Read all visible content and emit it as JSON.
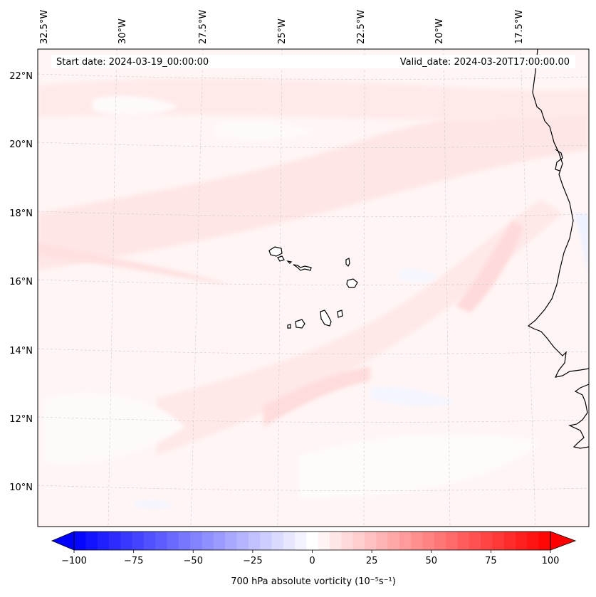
{
  "header": {
    "start_date": "Start date: 2024-03-19_00:00:00",
    "valid_date": "Valid_date: 2024-03-20T17:00:00.00"
  },
  "longitude_labels": [
    "32.5°W",
    "30°W",
    "27.5°W",
    "25°W",
    "22.5°W",
    "20°W",
    "17.5°W"
  ],
  "latitude_labels": [
    "22°N",
    "20°N",
    "18°N",
    "16°N",
    "14°N",
    "12°N",
    "10°N"
  ],
  "colorbar": {
    "label": "700 hPa absolute vorticity (10⁻⁵s⁻¹)",
    "ticks": [
      "−100",
      "−75",
      "−50",
      "−25",
      "0",
      "25",
      "50",
      "75",
      "100"
    ],
    "min": -100,
    "max": 100,
    "n_levels": 41,
    "low_color": "#0000ff",
    "mid_color": "#ffffff",
    "high_color": "#ff0000"
  },
  "map": {
    "field_background": "#fff6f6",
    "coastline_color": "#000000",
    "gridline_color": "#c8c8c8"
  }
}
